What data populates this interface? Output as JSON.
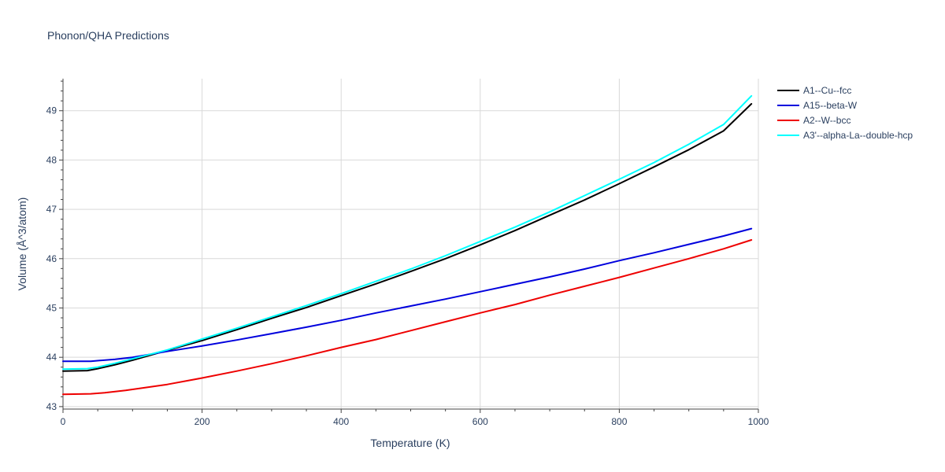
{
  "chart_data": {
    "type": "line",
    "title": "Phonon/QHA Predictions",
    "xlabel": "Temperature (K)",
    "ylabel": "Volume (Å^3/atom)",
    "xlim": [
      0,
      1000
    ],
    "ylim": [
      42.95,
      49.65
    ],
    "xticks": [
      0,
      200,
      400,
      600,
      800,
      1000
    ],
    "yticks": [
      43,
      44,
      45,
      46,
      47,
      48,
      49
    ],
    "grid": true,
    "legend_position": "top-right",
    "series": [
      {
        "name": "A1--Cu--fcc",
        "color": "#000000",
        "x": [
          0,
          35,
          50,
          75,
          100,
          150,
          200,
          250,
          300,
          350,
          400,
          450,
          500,
          550,
          600,
          650,
          700,
          750,
          800,
          850,
          900,
          950,
          990
        ],
        "y": [
          43.72,
          43.73,
          43.77,
          43.85,
          43.94,
          44.14,
          44.34,
          44.56,
          44.79,
          45.01,
          45.25,
          45.49,
          45.74,
          46.0,
          46.28,
          46.57,
          46.88,
          47.19,
          47.52,
          47.86,
          48.21,
          48.59,
          49.14
        ]
      },
      {
        "name": "A15--beta-W",
        "color": "#0000dd",
        "x": [
          0,
          40,
          75,
          100,
          150,
          200,
          250,
          300,
          350,
          400,
          450,
          500,
          550,
          600,
          650,
          700,
          750,
          800,
          850,
          900,
          950,
          990
        ],
        "y": [
          43.92,
          43.92,
          43.96,
          44.0,
          44.12,
          44.23,
          44.35,
          44.48,
          44.61,
          44.75,
          44.9,
          45.04,
          45.18,
          45.33,
          45.48,
          45.63,
          45.79,
          45.96,
          46.12,
          46.29,
          46.46,
          46.61
        ]
      },
      {
        "name": "A2--W--bcc",
        "color": "#ee0000",
        "x": [
          0,
          40,
          60,
          90,
          150,
          200,
          250,
          300,
          350,
          400,
          450,
          500,
          550,
          600,
          650,
          700,
          750,
          800,
          850,
          900,
          950,
          990
        ],
        "y": [
          43.25,
          43.26,
          43.28,
          43.33,
          43.45,
          43.58,
          43.72,
          43.87,
          44.03,
          44.2,
          44.36,
          44.54,
          44.72,
          44.9,
          45.07,
          45.26,
          45.44,
          45.62,
          45.81,
          46.0,
          46.2,
          46.38
        ]
      },
      {
        "name": "A3'--alpha-La--double-hcp",
        "color": "#00ffff",
        "x": [
          0,
          35,
          50,
          75,
          100,
          150,
          200,
          250,
          300,
          350,
          400,
          450,
          500,
          550,
          600,
          650,
          700,
          750,
          800,
          850,
          900,
          950,
          990
        ],
        "y": [
          43.76,
          43.77,
          43.8,
          43.88,
          43.97,
          44.15,
          44.37,
          44.59,
          44.82,
          45.05,
          45.29,
          45.54,
          45.79,
          46.06,
          46.35,
          46.64,
          46.95,
          47.28,
          47.61,
          47.95,
          48.32,
          48.72,
          49.3
        ]
      }
    ]
  }
}
